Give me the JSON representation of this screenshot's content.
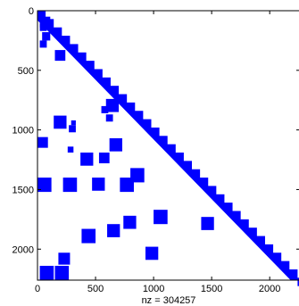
{
  "chart_data": {
    "type": "spy",
    "description_of_marks": "sparsity pattern of a lower-triangular matrix",
    "color": "#0000ff",
    "matrix_size": 2260,
    "xlim": [
      0,
      2260
    ],
    "ylim": [
      0,
      2260
    ],
    "y_axis_reversed": true,
    "x_ticks": [
      0,
      500,
      1000,
      1500,
      2000
    ],
    "y_ticks": [
      0,
      500,
      1000,
      1500,
      2000
    ],
    "x_tick_labels": [
      "0",
      "500",
      "1000",
      "1500",
      "2000"
    ],
    "y_tick_labels": [
      "0",
      "500",
      "1000",
      "1500",
      "2000"
    ],
    "xlabel": "nz = 304257",
    "diagonal_band_width": 80,
    "blocks": [
      {
        "row": 50,
        "col": 20,
        "size": 90
      },
      {
        "row": 110,
        "col": 20,
        "size": 60
      },
      {
        "row": 180,
        "col": 40,
        "size": 70
      },
      {
        "row": 250,
        "col": 20,
        "size": 60
      },
      {
        "row": 330,
        "col": 150,
        "size": 90
      },
      {
        "row": 740,
        "col": 590,
        "size": 110
      },
      {
        "row": 800,
        "col": 550,
        "size": 60
      },
      {
        "row": 870,
        "col": 590,
        "size": 60
      },
      {
        "row": 880,
        "col": 140,
        "size": 110
      },
      {
        "row": 920,
        "col": 290,
        "size": 40
      },
      {
        "row": 960,
        "col": 270,
        "size": 60
      },
      {
        "row": 1060,
        "col": 0,
        "size": 90
      },
      {
        "row": 1070,
        "col": 620,
        "size": 110
      },
      {
        "row": 1140,
        "col": 260,
        "size": 50
      },
      {
        "row": 1190,
        "col": 530,
        "size": 90
      },
      {
        "row": 1190,
        "col": 370,
        "size": 110
      },
      {
        "row": 1320,
        "col": 800,
        "size": 120
      },
      {
        "row": 1400,
        "col": 0,
        "size": 120
      },
      {
        "row": 1400,
        "col": 220,
        "size": 120
      },
      {
        "row": 1400,
        "col": 470,
        "size": 110
      },
      {
        "row": 1400,
        "col": 710,
        "size": 120
      },
      {
        "row": 1670,
        "col": 1000,
        "size": 120
      },
      {
        "row": 1720,
        "col": 740,
        "size": 110
      },
      {
        "row": 1730,
        "col": 1410,
        "size": 110
      },
      {
        "row": 1790,
        "col": 600,
        "size": 110
      },
      {
        "row": 1830,
        "col": 380,
        "size": 120
      },
      {
        "row": 1980,
        "col": 930,
        "size": 110
      },
      {
        "row": 2030,
        "col": 180,
        "size": 100
      },
      {
        "row": 2260,
        "col": 20,
        "size": 120
      },
      {
        "row": 2270,
        "col": 150,
        "size": 120
      }
    ]
  }
}
